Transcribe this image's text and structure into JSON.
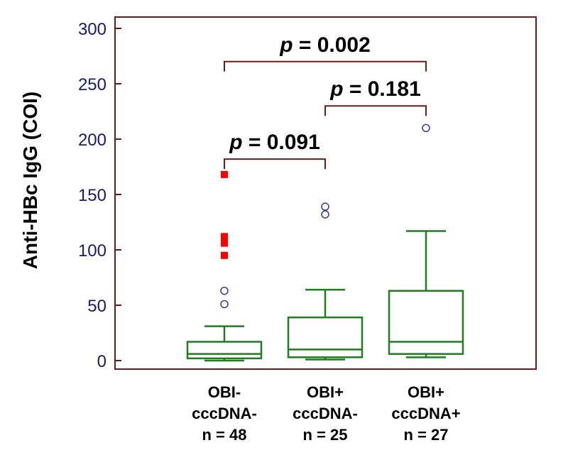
{
  "chart_data": {
    "type": "box",
    "ylabel": "Anti-HBc IgG (COI)",
    "ylim": [
      0,
      300
    ],
    "yticks": [
      0,
      50,
      100,
      150,
      200,
      250,
      300
    ],
    "grid": false,
    "categories": [
      {
        "lines": [
          "OBI-",
          "cccDNA-",
          "n = 48"
        ]
      },
      {
        "lines": [
          "OBI+",
          "cccDNA-",
          "n = 25"
        ]
      },
      {
        "lines": [
          "OBI+",
          "cccDNA+",
          "n = 27"
        ]
      }
    ],
    "boxes": [
      {
        "whisker_low": 0,
        "q1": 2,
        "median": 6,
        "q3": 17,
        "whisker_high": 31,
        "outliers_circle": [
          51,
          63
        ],
        "outliers_far": [
          95,
          106,
          109,
          112,
          168
        ]
      },
      {
        "whisker_low": 1,
        "q1": 3,
        "median": 10,
        "q3": 39,
        "whisker_high": 64,
        "outliers_circle": [
          132,
          139
        ],
        "outliers_far": []
      },
      {
        "whisker_low": 3,
        "q1": 6,
        "median": 17,
        "q3": 63,
        "whisker_high": 117,
        "outliers_circle": [
          210
        ],
        "outliers_far": []
      }
    ],
    "comparisons": [
      {
        "from": 0,
        "to": 2,
        "p_prefix": "p",
        "p_text": "= 0.002",
        "bracket_y": 270
      },
      {
        "from": 1,
        "to": 2,
        "p_prefix": "p",
        "p_text": "= 0.181",
        "bracket_y": 230
      },
      {
        "from": 0,
        "to": 1,
        "p_prefix": "p",
        "p_text": "= 0.091",
        "bracket_y": 182
      }
    ],
    "colors": {
      "frame": "#6b1a1a",
      "box": "#1e7d1e",
      "circle_outlier": "#3a3a8c",
      "far_outlier": "#ff0000",
      "bracket": "#6b1a1a",
      "tick_text": "#1a1a6e"
    }
  }
}
